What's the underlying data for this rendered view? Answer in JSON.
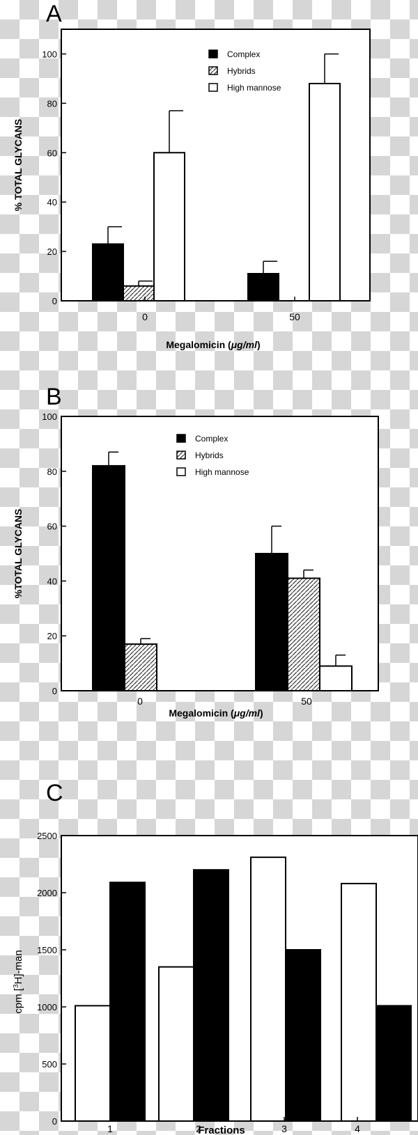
{
  "chart_data": [
    {
      "type": "bar",
      "panel_label": "A",
      "categories": [
        "0",
        "50"
      ],
      "series": [
        {
          "name": "Complex",
          "fill": "solid",
          "values": [
            23,
            11
          ],
          "errors": [
            7,
            5
          ]
        },
        {
          "name": "Hybrids",
          "fill": "hatched",
          "values": [
            6,
            0
          ],
          "errors": [
            2,
            0
          ]
        },
        {
          "name": "High mannose",
          "fill": "white",
          "values": [
            60,
            88
          ],
          "errors": [
            17,
            12
          ]
        }
      ],
      "xlabel_prefix": "Megalomicin (",
      "xlabel_unit": "μg/ml",
      "xlabel_suffix": ")",
      "ylabel": "% TOTAL  GLYCANS",
      "ylim": [
        0,
        110
      ],
      "yticks": [
        0,
        20,
        40,
        60,
        80,
        100
      ],
      "legend_position": "top-right",
      "grid": false
    },
    {
      "type": "bar",
      "panel_label": "B",
      "categories": [
        "0",
        "50"
      ],
      "series": [
        {
          "name": "Complex",
          "fill": "solid",
          "values": [
            82,
            50
          ],
          "errors": [
            5,
            10
          ]
        },
        {
          "name": "Hybrids",
          "fill": "hatched",
          "values": [
            17,
            41
          ],
          "errors": [
            2,
            3
          ]
        },
        {
          "name": "High mannose",
          "fill": "white",
          "values": [
            0,
            9
          ],
          "errors": [
            0,
            4
          ]
        }
      ],
      "xlabel_prefix": "Megalomicin (",
      "xlabel_unit": "μg/ml",
      "xlabel_suffix": ")",
      "ylabel": "%TOTAL  GLYCANS",
      "ylim": [
        0,
        100
      ],
      "yticks": [
        0,
        20,
        40,
        60,
        80,
        100
      ],
      "legend_position": "top-center",
      "grid": false
    },
    {
      "type": "bar",
      "panel_label": "C",
      "categories": [
        "1",
        "2",
        "3",
        "4"
      ],
      "series": [
        {
          "fill": "white",
          "values": [
            1010,
            1350,
            2310,
            2080
          ]
        },
        {
          "fill": "solid",
          "values": [
            2090,
            2200,
            1500,
            1010
          ]
        }
      ],
      "xlabel": "Fractions",
      "ylabel_prefix": "cpm [",
      "ylabel_sup": "3",
      "ylabel_suffix": "H]-man",
      "ylim": [
        0,
        2500
      ],
      "yticks": [
        0,
        500,
        1000,
        1500,
        2000,
        2500
      ],
      "grid": false
    }
  ]
}
